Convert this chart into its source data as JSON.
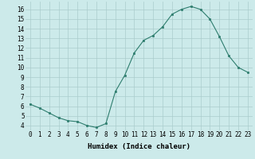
{
  "x": [
    0,
    1,
    2,
    3,
    4,
    5,
    6,
    7,
    8,
    9,
    10,
    11,
    12,
    13,
    14,
    15,
    16,
    17,
    18,
    19,
    20,
    21,
    22,
    23
  ],
  "y": [
    6.2,
    5.8,
    5.3,
    4.8,
    4.5,
    4.4,
    4.0,
    3.8,
    4.2,
    7.5,
    9.2,
    11.5,
    12.8,
    13.3,
    14.2,
    15.5,
    16.0,
    16.3,
    16.0,
    15.0,
    13.2,
    11.2,
    10.0,
    9.5
  ],
  "xlabel": "Humidex (Indice chaleur)",
  "xlim": [
    -0.5,
    23.5
  ],
  "ylim": [
    3.5,
    16.8
  ],
  "yticks": [
    4,
    5,
    6,
    7,
    8,
    9,
    10,
    11,
    12,
    13,
    14,
    15,
    16
  ],
  "xticks": [
    0,
    1,
    2,
    3,
    4,
    5,
    6,
    7,
    8,
    9,
    10,
    11,
    12,
    13,
    14,
    15,
    16,
    17,
    18,
    19,
    20,
    21,
    22,
    23
  ],
  "line_color": "#2e7d6e",
  "marker_color": "#2e7d6e",
  "bg_color": "#cceaea",
  "grid_color": "#aacccc",
  "tick_fontsize": 5.5,
  "label_fontsize": 6.5
}
